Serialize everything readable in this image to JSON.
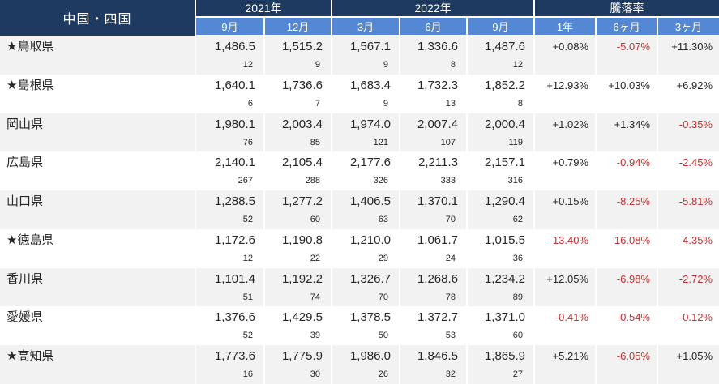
{
  "colors": {
    "header_dark": "#1F3A60",
    "header_blue": "#5588D4",
    "row_alt": "#F2F2F2",
    "text": "#262626",
    "negative_red": "#C03030"
  },
  "chart_data": {
    "type": "table",
    "title": "中国・四国",
    "column_groups": [
      {
        "label": "2021年",
        "span": 2
      },
      {
        "label": "2022年",
        "span": 3
      },
      {
        "label": "騰落率",
        "span": 3
      }
    ],
    "sub_columns": [
      "9月",
      "12月",
      "3月",
      "6月",
      "9月",
      "1年",
      "6ヶ月",
      "3ヶ月"
    ],
    "rows": [
      {
        "name": "★鳥取県",
        "values": [
          "1,486.5",
          "1,515.2",
          "1,567.1",
          "1,336.6",
          "1,487.6"
        ],
        "counts": [
          "12",
          "9",
          "9",
          "8",
          "12"
        ],
        "pct": [
          "+0.08%",
          "-5.07%",
          "+11.30%"
        ]
      },
      {
        "name": "★島根県",
        "values": [
          "1,640.1",
          "1,736.6",
          "1,683.4",
          "1,732.3",
          "1,852.2"
        ],
        "counts": [
          "6",
          "7",
          "9",
          "13",
          "8"
        ],
        "pct": [
          "+12.93%",
          "+10.03%",
          "+6.92%"
        ]
      },
      {
        "name": "岡山県",
        "values": [
          "1,980.1",
          "2,003.4",
          "1,974.0",
          "2,007.4",
          "2,000.4"
        ],
        "counts": [
          "76",
          "85",
          "121",
          "107",
          "119"
        ],
        "pct": [
          "+1.02%",
          "+1.34%",
          "-0.35%"
        ]
      },
      {
        "name": "広島県",
        "values": [
          "2,140.1",
          "2,105.4",
          "2,177.6",
          "2,211.3",
          "2,157.1"
        ],
        "counts": [
          "267",
          "288",
          "326",
          "333",
          "316"
        ],
        "pct": [
          "+0.79%",
          "-0.94%",
          "-2.45%"
        ]
      },
      {
        "name": "山口県",
        "values": [
          "1,288.5",
          "1,277.2",
          "1,406.5",
          "1,370.1",
          "1,290.4"
        ],
        "counts": [
          "52",
          "60",
          "63",
          "70",
          "62"
        ],
        "pct": [
          "+0.15%",
          "-8.25%",
          "-5.81%"
        ]
      },
      {
        "name": "★徳島県",
        "values": [
          "1,172.6",
          "1,190.8",
          "1,210.0",
          "1,061.7",
          "1,015.5"
        ],
        "counts": [
          "12",
          "22",
          "29",
          "24",
          "36"
        ],
        "pct": [
          "-13.40%",
          "-16.08%",
          "-4.35%"
        ]
      },
      {
        "name": "香川県",
        "values": [
          "1,101.4",
          "1,192.2",
          "1,326.7",
          "1,268.6",
          "1,234.2"
        ],
        "counts": [
          "51",
          "74",
          "70",
          "78",
          "89"
        ],
        "pct": [
          "+12.05%",
          "-6.98%",
          "-2.72%"
        ]
      },
      {
        "name": "愛媛県",
        "values": [
          "1,376.6",
          "1,429.5",
          "1,378.5",
          "1,372.7",
          "1,371.0"
        ],
        "counts": [
          "52",
          "39",
          "50",
          "53",
          "60"
        ],
        "pct": [
          "-0.41%",
          "-0.54%",
          "-0.12%"
        ]
      },
      {
        "name": "★高知県",
        "values": [
          "1,773.6",
          "1,775.9",
          "1,986.0",
          "1,846.5",
          "1,865.9"
        ],
        "counts": [
          "16",
          "30",
          "26",
          "32",
          "27"
        ],
        "pct": [
          "+5.21%",
          "-6.05%",
          "+1.05%"
        ]
      }
    ]
  }
}
